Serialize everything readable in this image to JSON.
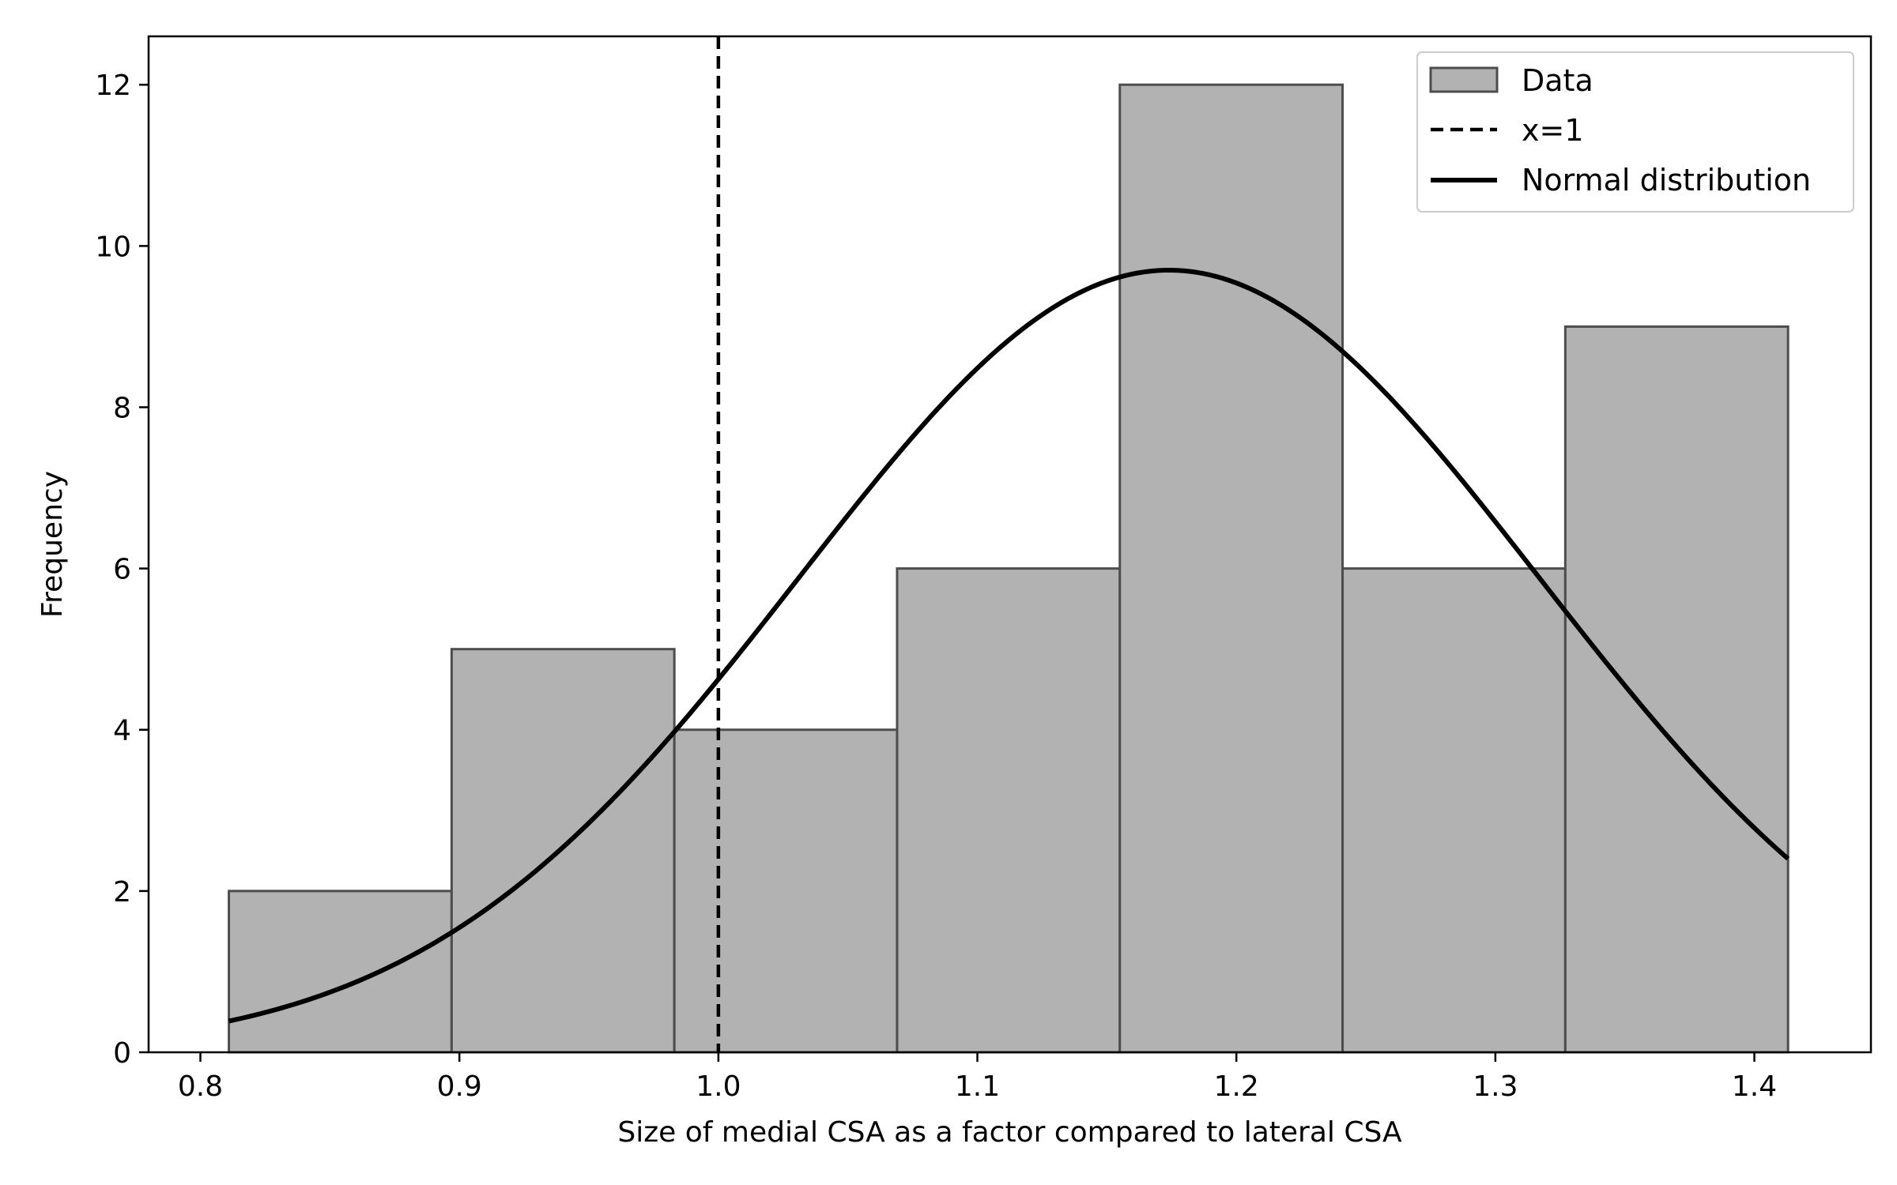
{
  "chart_data": {
    "type": "bar",
    "subtype": "histogram-with-normal-fit",
    "xlabel": "Size of medial CSA as a factor compared to lateral CSA",
    "ylabel": "Frequency",
    "xlim": [
      0.78,
      1.445
    ],
    "ylim": [
      0,
      12.6
    ],
    "xticks": [
      0.8,
      0.9,
      1.0,
      1.1,
      1.2,
      1.3,
      1.4
    ],
    "xtick_labels": [
      "0.8",
      "0.9",
      "1.0",
      "1.1",
      "1.2",
      "1.3",
      "1.4"
    ],
    "yticks": [
      0,
      2,
      4,
      6,
      8,
      10,
      12
    ],
    "ytick_labels": [
      "0",
      "2",
      "4",
      "6",
      "8",
      "10",
      "12"
    ],
    "bins": [
      {
        "x0": 0.811,
        "x1": 0.897,
        "count": 2
      },
      {
        "x0": 0.897,
        "x1": 0.983,
        "count": 5
      },
      {
        "x0": 0.983,
        "x1": 1.069,
        "count": 4
      },
      {
        "x0": 1.069,
        "x1": 1.155,
        "count": 6
      },
      {
        "x0": 1.155,
        "x1": 1.241,
        "count": 12
      },
      {
        "x0": 1.241,
        "x1": 1.327,
        "count": 6
      },
      {
        "x0": 1.327,
        "x1": 1.413,
        "count": 9
      }
    ],
    "reference_line": {
      "x": 1.0,
      "style": "dashed",
      "label": "x=1"
    },
    "normal_fit": {
      "mean": 1.174,
      "sd": 0.143,
      "peak": 9.7,
      "x_range": [
        0.811,
        1.413
      ],
      "label": "Normal distribution"
    },
    "series": [
      {
        "name": "Data",
        "kind": "histogram",
        "color": "#b2b2b2",
        "edge_color": "#4d4d4d"
      },
      {
        "name": "x=1",
        "kind": "vline",
        "color": "#000000"
      },
      {
        "name": "Normal distribution",
        "kind": "line",
        "color": "#000000"
      }
    ],
    "legend_position": "top-right",
    "grid": false
  }
}
